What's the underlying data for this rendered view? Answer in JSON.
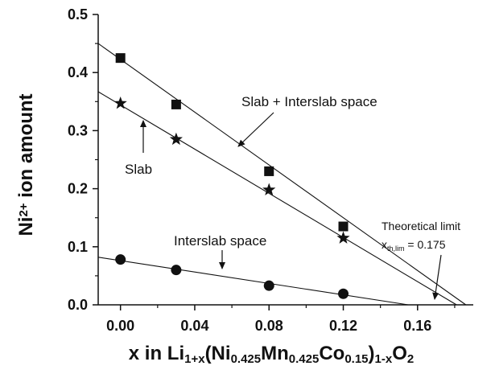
{
  "chart_data": {
    "type": "scatter",
    "title": "",
    "xlabel": {
      "parts": [
        {
          "t": "x in Li",
          "s": "n"
        },
        {
          "t": "1+x",
          "s": "sub"
        },
        {
          "t": "(Ni",
          "s": "n"
        },
        {
          "t": "0.425",
          "s": "sub"
        },
        {
          "t": "Mn",
          "s": "n"
        },
        {
          "t": "0.425",
          "s": "sub"
        },
        {
          "t": "Co",
          "s": "n"
        },
        {
          "t": "0.15",
          "s": "sub"
        },
        {
          "t": ")",
          "s": "n"
        },
        {
          "t": "1-x",
          "s": "sub"
        },
        {
          "t": "O",
          "s": "n"
        },
        {
          "t": "2",
          "s": "sub"
        }
      ]
    },
    "ylabel": {
      "parts": [
        {
          "t": "Ni",
          "s": "n"
        },
        {
          "t": "2+",
          "s": "sup"
        },
        {
          "t": " ion amount",
          "s": "n"
        }
      ]
    },
    "xlim": [
      -0.012,
      0.19
    ],
    "ylim": [
      0.0,
      0.5
    ],
    "xticks": [
      "0.00",
      "0.04",
      "0.08",
      "0.12",
      "0.16"
    ],
    "yticks": [
      "0.0",
      "0.1",
      "0.2",
      "0.3",
      "0.4",
      "0.5"
    ],
    "grid": false,
    "series": [
      {
        "marker": "square",
        "x": [
          0.0,
          0.03,
          0.08,
          0.12
        ],
        "y": [
          0.425,
          0.345,
          0.23,
          0.135
        ],
        "fit": {
          "x0": -0.012,
          "y0": 0.45,
          "x1": 0.186,
          "y1": 0.0
        }
      },
      {
        "marker": "star",
        "x": [
          0.0,
          0.03,
          0.08,
          0.12
        ],
        "y": [
          0.347,
          0.285,
          0.198,
          0.115
        ],
        "fit": {
          "x0": -0.012,
          "y0": 0.367,
          "x1": 0.181,
          "y1": 0.0
        }
      },
      {
        "marker": "circle",
        "x": [
          0.0,
          0.03,
          0.08,
          0.12
        ],
        "y": [
          0.078,
          0.06,
          0.033,
          0.019
        ],
        "fit": {
          "x0": -0.012,
          "y0": 0.082,
          "x1": 0.155,
          "y1": 0.0
        }
      }
    ],
    "annotations": {
      "slab_plus_interslab": "Slab + Interslab space",
      "slab": "Slab",
      "interslab": "Interslab space",
      "limit_title": "Theoretical limit",
      "limit_value": {
        "parts": [
          {
            "t": "x",
            "s": "n"
          },
          {
            "t": "th,lim",
            "s": "sub"
          },
          {
            "t": " = 0.175",
            "s": "n"
          }
        ]
      }
    }
  }
}
